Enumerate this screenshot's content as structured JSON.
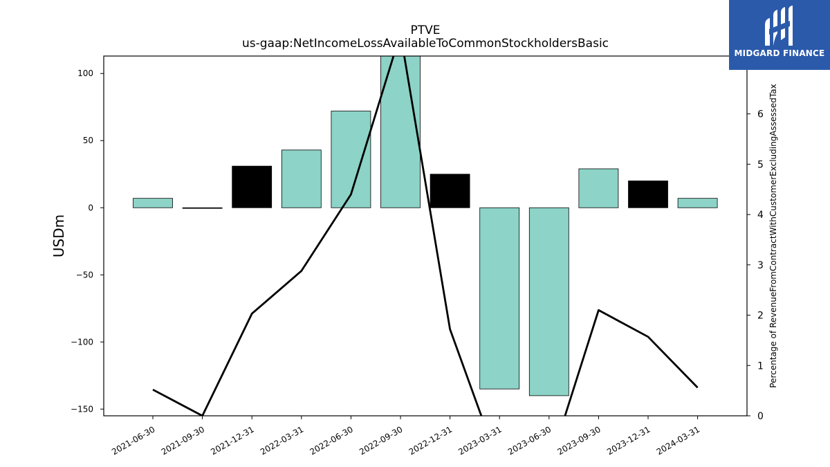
{
  "chart_data": {
    "type": "bar",
    "title": "PTVE",
    "subtitle": "us-gaap:NetIncomeLossAvailableToCommonStockholdersBasic",
    "ylabel": "USDm",
    "y2label": "Percentage of RevenueFromContractWithCustomerExcludingAssessedTax",
    "categories": [
      "2021-06-30",
      "2021-09-30",
      "2021-12-31",
      "2022-03-31",
      "2022-06-30",
      "2022-09-30",
      "2022-12-31",
      "2023-03-31",
      "2023-06-30",
      "2023-09-30",
      "2023-12-31",
      "2024-03-31"
    ],
    "series": [
      {
        "type": "bar",
        "values": [
          7,
          -0.5,
          31,
          43,
          72,
          114,
          25,
          -135,
          -140,
          29,
          20,
          7
        ],
        "colors": [
          "#8dd3c7",
          "#000000",
          "#000000",
          "#8dd3c7",
          "#8dd3c7",
          "#8dd3c7",
          "#000000",
          "#8dd3c7",
          "#8dd3c7",
          "#8dd3c7",
          "#000000",
          "#8dd3c7"
        ]
      },
      {
        "type": "line",
        "axis": "right",
        "color": "#000000",
        "values": [
          0.52,
          0.0,
          2.03,
          2.88,
          4.4,
          7.6,
          1.72,
          -1.0,
          -1.0,
          2.1,
          1.57,
          0.56
        ]
      }
    ],
    "ylim": [
      -155,
      113
    ],
    "y2lim": [
      0,
      7.15
    ],
    "yticks": [
      -150,
      -100,
      -50,
      0,
      50,
      100
    ],
    "y2ticks": [
      0,
      1,
      2,
      3,
      4,
      5,
      6
    ]
  },
  "logo": {
    "text": "MIDGARD FINANCE",
    "background": "#2b5aaa"
  }
}
